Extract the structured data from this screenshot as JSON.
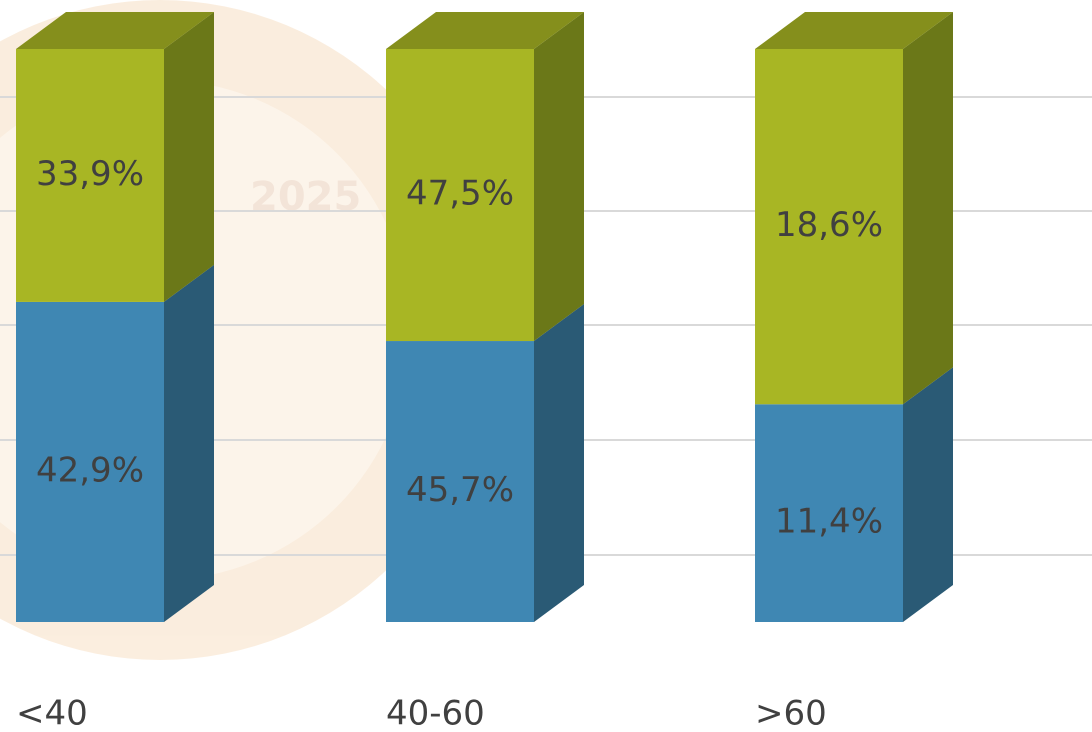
{
  "chart_data": {
    "type": "bar",
    "stacked": "percent",
    "categories": [
      "<40",
      "40-60",
      ">60"
    ],
    "series": [
      {
        "color": "#3f87b3",
        "side_color": "#2a5a75",
        "values": [
          42.9,
          45.7,
          11.4
        ],
        "value_labels": [
          "42,9%",
          "45,7%",
          "11,4%"
        ]
      },
      {
        "color": "#a8b624",
        "side_color": "#6b7818",
        "top_color": "#858f1c",
        "values": [
          33.9,
          47.5,
          18.6
        ],
        "value_labels": [
          "33,9%",
          "47,5%",
          "18,6%"
        ]
      }
    ]
  }
}
